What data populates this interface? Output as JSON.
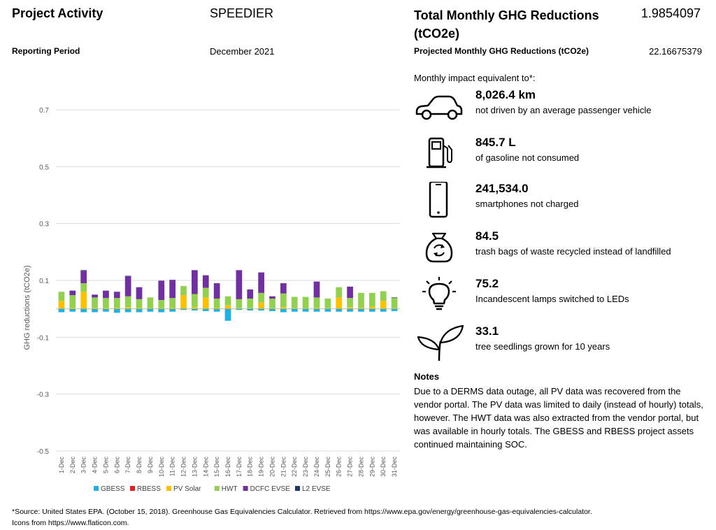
{
  "header": {
    "project_activity_label": "Project Activity",
    "project_name": "SPEEDIER",
    "reporting_period_label": "Reporting Period",
    "reporting_period_value": "December 2021",
    "total_label_line1": "Total Monthly GHG Reductions",
    "total_label_line2": "(tCO2e)",
    "total_value": "1.9854097",
    "projected_label": "Projected Monthly GHG Reductions (tCO2e)",
    "projected_value": "22.16675379"
  },
  "impact": {
    "intro": "Monthly impact equivalent to*:",
    "items": [
      {
        "icon": "car-icon",
        "value": "8,026.4 km",
        "desc": "not driven by an average passenger vehicle"
      },
      {
        "icon": "fuel-pump-icon",
        "value": "845.7 L",
        "desc": "of gasoline not consumed"
      },
      {
        "icon": "smartphone-icon",
        "value": "241,534.0",
        "desc": "smartphones not charged"
      },
      {
        "icon": "recycle-bag-icon",
        "value": "84.5",
        "desc": "trash bags of waste recycled instead of landfilled"
      },
      {
        "icon": "lightbulb-icon",
        "value": "75.2",
        "desc": "Incandescent lamps switched to LEDs"
      },
      {
        "icon": "seedling-icon",
        "value": "33.1",
        "desc": "tree seedlings grown for 10 years"
      }
    ]
  },
  "notes": {
    "title": "Notes",
    "body": "Due to a DERMS data outage, all PV data was recovered from the vendor portal. The PV data was limited to daily (instead of hourly) totals, however. The HWT data was also extracted from the vendor portal, but was available in hourly totals. The GBESS and RBESS project assets continued maintaining SOC."
  },
  "footer": {
    "source": "*Source: United States EPA. (October 15, 2018). Greenhouse Gas Equivalencies Calculator. Retrieved from https://www.epa.gov/energy/greenhouse-gas-equivalencies-calculator.",
    "icons": "Icons from https://www.flaticon.com."
  },
  "chart_data": {
    "type": "bar",
    "stacked": true,
    "ylabel": "GHG reductions (tCO2e)",
    "ylim": [
      -0.5,
      0.7
    ],
    "yticks": [
      0.7,
      0.5,
      0.3,
      0.1,
      -0.1,
      -0.3,
      -0.5
    ],
    "grid": true,
    "legend_position": "bottom",
    "categories": [
      "1-Dec",
      "2-Dec",
      "3-Dec",
      "4-Dec",
      "5-Dec",
      "6-Dec",
      "7-Dec",
      "8-Dec",
      "9-Dec",
      "10-Dec",
      "11-Dec",
      "12-Dec",
      "13-Dec",
      "14-Dec",
      "15-Dec",
      "16-Dec",
      "17-Dec",
      "18-Dec",
      "19-Dec",
      "20-Dec",
      "21-Dec",
      "22-Dec",
      "23-Dec",
      "24-Dec",
      "25-Dec",
      "26-Dec",
      "27-Dec",
      "28-Dec",
      "29-Dec",
      "30-Dec",
      "31-Dec"
    ],
    "series": [
      {
        "name": "GBESS",
        "color": "#1fb0e6",
        "values": [
          -0.012,
          -0.01,
          -0.012,
          -0.012,
          -0.01,
          -0.014,
          -0.012,
          -0.012,
          -0.01,
          -0.012,
          -0.01,
          -0.004,
          -0.006,
          -0.008,
          -0.01,
          -0.042,
          -0.004,
          -0.006,
          -0.006,
          -0.008,
          -0.012,
          -0.01,
          -0.01,
          -0.01,
          -0.01,
          -0.01,
          -0.01,
          -0.01,
          -0.01,
          -0.01,
          -0.008
        ]
      },
      {
        "name": "RBESS",
        "color": "#e02020",
        "values": [
          0,
          0,
          0,
          0,
          0,
          0,
          0,
          0,
          0,
          0,
          0,
          0,
          0,
          0,
          0,
          0,
          0,
          0,
          0,
          0,
          0,
          0,
          0,
          0,
          0,
          0,
          0,
          0,
          0,
          0,
          0
        ]
      },
      {
        "name": "PV Solar",
        "color": "#ffc000",
        "values": [
          0.028,
          0.004,
          0.06,
          0.004,
          0.004,
          0.004,
          0.006,
          0.004,
          0.002,
          0.003,
          0.004,
          0.048,
          0.006,
          0.04,
          0.004,
          0.012,
          0.002,
          0.002,
          0.022,
          0.002,
          0.006,
          0.002,
          0.002,
          0.004,
          0.002,
          0.04,
          0.006,
          0.004,
          0.008,
          0.028,
          0.002
        ]
      },
      {
        "name": "HWT",
        "color": "#92d050",
        "values": [
          0.032,
          0.044,
          0.03,
          0.036,
          0.034,
          0.034,
          0.038,
          0.03,
          0.038,
          0.028,
          0.034,
          0.032,
          0.046,
          0.034,
          0.032,
          0.032,
          0.032,
          0.034,
          0.034,
          0.034,
          0.048,
          0.04,
          0.04,
          0.036,
          0.034,
          0.036,
          0.032,
          0.052,
          0.048,
          0.034,
          0.036
        ]
      },
      {
        "name": "DCFC EVSE",
        "color": "#7030a0",
        "values": [
          0,
          0.016,
          0.044,
          0.01,
          0.026,
          0.022,
          0.07,
          0.042,
          0,
          0.068,
          0.064,
          0,
          0.084,
          0.044,
          0.054,
          0,
          0.102,
          0.032,
          0.072,
          0.008,
          0.036,
          0,
          0,
          0.056,
          0,
          0,
          0.04,
          0,
          0,
          0,
          0
        ]
      },
      {
        "name": "L2 EVSE",
        "color": "#1f3864",
        "values": [
          0,
          0,
          0.002,
          0,
          0,
          0,
          0.002,
          0,
          0,
          0,
          0,
          0,
          0,
          0,
          0,
          0,
          0,
          0,
          0,
          0,
          0,
          0,
          0,
          0,
          0,
          0,
          0,
          0,
          0,
          0,
          0.002
        ]
      }
    ]
  }
}
